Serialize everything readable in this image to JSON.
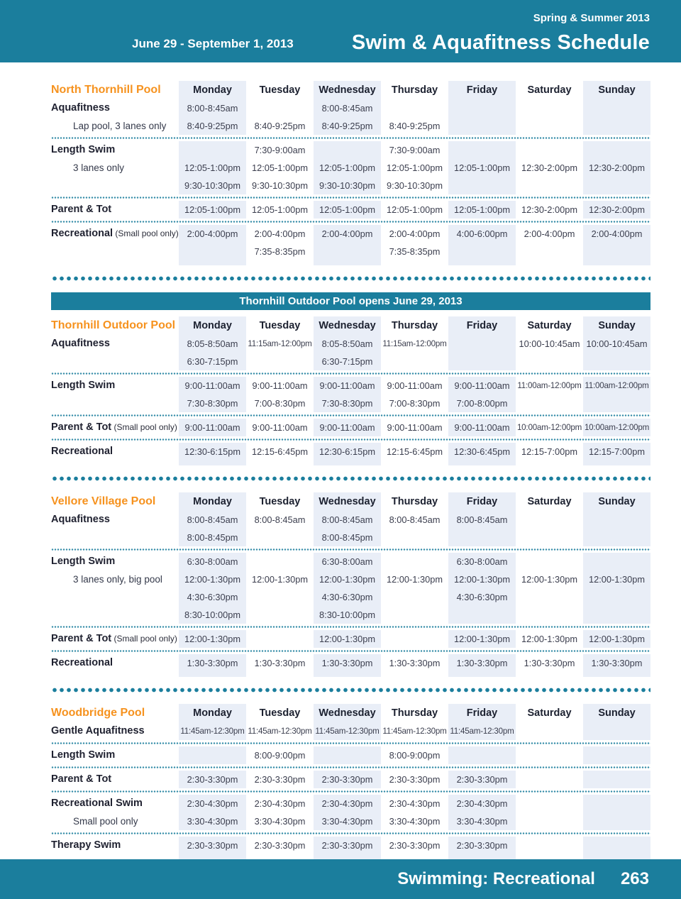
{
  "header": {
    "season": "Spring & Summer 2013",
    "date_range": "June 29 - September 1, 2013",
    "title": "Swim & Aquafitness Schedule"
  },
  "days": [
    "Monday",
    "Tuesday",
    "Wednesday",
    "Thursday",
    "Friday",
    "Saturday",
    "Sunday"
  ],
  "colors": {
    "teal": "#1b7e9d",
    "orange": "#f6921e",
    "shaded_column": "#e9eef7"
  },
  "pools": [
    {
      "name": "North Thornhill Pool",
      "banner": "",
      "groups": [
        {
          "rows": [
            {
              "label": "Aquafitness",
              "note": "",
              "sub": false,
              "times": [
                "8:00-8:45am",
                "",
                "8:00-8:45am",
                "",
                "",
                "",
                ""
              ]
            },
            {
              "label": "Lap pool, 3 lanes only",
              "note": "",
              "sub": true,
              "times": [
                "8:40-9:25pm",
                "8:40-9:25pm",
                "8:40-9:25pm",
                "8:40-9:25pm",
                "",
                "",
                ""
              ]
            }
          ]
        },
        {
          "rows": [
            {
              "label": "Length Swim",
              "note": "",
              "sub": false,
              "times": [
                "",
                "7:30-9:00am",
                "",
                "7:30-9:00am",
                "",
                "",
                ""
              ]
            },
            {
              "label": "3 lanes only",
              "note": "",
              "sub": true,
              "times": [
                "12:05-1:00pm",
                "12:05-1:00pm",
                "12:05-1:00pm",
                "12:05-1:00pm",
                "12:05-1:00pm",
                "12:30-2:00pm",
                "12:30-2:00pm"
              ]
            },
            {
              "label": "",
              "note": "",
              "sub": true,
              "times": [
                "9:30-10:30pm",
                "9:30-10:30pm",
                "9:30-10:30pm",
                "9:30-10:30pm",
                "",
                "",
                ""
              ]
            }
          ]
        },
        {
          "rows": [
            {
              "label": "Parent & Tot",
              "note": "",
              "sub": false,
              "times": [
                "12:05-1:00pm",
                "12:05-1:00pm",
                "12:05-1:00pm",
                "12:05-1:00pm",
                "12:05-1:00pm",
                "12:30-2:00pm",
                "12:30-2:00pm"
              ]
            }
          ]
        },
        {
          "rows": [
            {
              "label": "Recreational",
              "note": "(Small pool only)",
              "sub": false,
              "times": [
                "2:00-4:00pm",
                "2:00-4:00pm",
                "2:00-4:00pm",
                "2:00-4:00pm",
                "4:00-6:00pm",
                "2:00-4:00pm",
                "2:00-4:00pm"
              ]
            },
            {
              "label": "",
              "note": "",
              "sub": true,
              "times": [
                "",
                "7:35-8:35pm",
                "",
                "7:35-8:35pm",
                "",
                "",
                ""
              ]
            }
          ]
        }
      ]
    },
    {
      "name": "Thornhill Outdoor Pool",
      "banner": "Thornhill Outdoor Pool opens June 29, 2013",
      "groups": [
        {
          "rows": [
            {
              "label": "Aquafitness",
              "note": "",
              "sub": false,
              "times": [
                "8:05-8:50am",
                "11:15am-12:00pm",
                "8:05-8:50am",
                "11:15am-12:00pm",
                "",
                "10:00-10:45am",
                "10:00-10:45am"
              ]
            },
            {
              "label": "",
              "note": "",
              "sub": true,
              "times": [
                "6:30-7:15pm",
                "",
                "6:30-7:15pm",
                "",
                "",
                "",
                ""
              ]
            }
          ]
        },
        {
          "rows": [
            {
              "label": "Length Swim",
              "note": "",
              "sub": false,
              "times": [
                "9:00-11:00am",
                "9:00-11:00am",
                "9:00-11:00am",
                "9:00-11:00am",
                "9:00-11:00am",
                "11:00am-12:00pm",
                "11:00am-12:00pm"
              ]
            },
            {
              "label": "",
              "note": "",
              "sub": true,
              "times": [
                "7:30-8:30pm",
                "7:00-8:30pm",
                "7:30-8:30pm",
                "7:00-8:30pm",
                "7:00-8:00pm",
                "",
                ""
              ]
            }
          ]
        },
        {
          "rows": [
            {
              "label": "Parent & Tot",
              "note": "(Small pool only)",
              "sub": false,
              "times": [
                "9:00-11:00am",
                "9:00-11:00am",
                "9:00-11:00am",
                "9:00-11:00am",
                "9:00-11:00am",
                "10:00am-12:00pm",
                "10:00am-12:00pm"
              ]
            }
          ]
        },
        {
          "rows": [
            {
              "label": "Recreational",
              "note": "",
              "sub": false,
              "times": [
                "12:30-6:15pm",
                "12:15-6:45pm",
                "12:30-6:15pm",
                "12:15-6:45pm",
                "12:30-6:45pm",
                "12:15-7:00pm",
                "12:15-7:00pm"
              ]
            }
          ]
        }
      ]
    },
    {
      "name": "Vellore Village Pool",
      "banner": "",
      "groups": [
        {
          "rows": [
            {
              "label": "Aquafitness",
              "note": "",
              "sub": false,
              "times": [
                "8:00-8:45am",
                "8:00-8:45am",
                "8:00-8:45am",
                "8:00-8:45am",
                "8:00-8:45am",
                "",
                ""
              ]
            },
            {
              "label": "",
              "note": "",
              "sub": true,
              "times": [
                "8:00-8:45pm",
                "",
                "8:00-8:45pm",
                "",
                "",
                "",
                ""
              ]
            }
          ]
        },
        {
          "rows": [
            {
              "label": "Length Swim",
              "note": "",
              "sub": false,
              "times": [
                "6:30-8:00am",
                "",
                "6:30-8:00am",
                "",
                "6:30-8:00am",
                "",
                ""
              ]
            },
            {
              "label": "3 lanes only, big pool",
              "note": "",
              "sub": true,
              "times": [
                "12:00-1:30pm",
                "12:00-1:30pm",
                "12:00-1:30pm",
                "12:00-1:30pm",
                "12:00-1:30pm",
                "12:00-1:30pm",
                "12:00-1:30pm"
              ]
            },
            {
              "label": "",
              "note": "",
              "sub": true,
              "times": [
                "4:30-6:30pm",
                "",
                "4:30-6:30pm",
                "",
                "4:30-6:30pm",
                "",
                ""
              ]
            },
            {
              "label": "",
              "note": "",
              "sub": true,
              "times": [
                "8:30-10:00pm",
                "",
                "8:30-10:00pm",
                "",
                "",
                "",
                ""
              ]
            }
          ]
        },
        {
          "rows": [
            {
              "label": "Parent & Tot",
              "note": "(Small pool only)",
              "sub": false,
              "times": [
                "12:00-1:30pm",
                "",
                "12:00-1:30pm",
                "",
                "12:00-1:30pm",
                "12:00-1:30pm",
                "12:00-1:30pm"
              ]
            }
          ]
        },
        {
          "rows": [
            {
              "label": "Recreational",
              "note": "",
              "sub": false,
              "times": [
                "1:30-3:30pm",
                "1:30-3:30pm",
                "1:30-3:30pm",
                "1:30-3:30pm",
                "1:30-3:30pm",
                "1:30-3:30pm",
                "1:30-3:30pm"
              ]
            }
          ]
        }
      ]
    },
    {
      "name": "Woodbridge Pool",
      "banner": "",
      "groups": [
        {
          "rows": [
            {
              "label": "Gentle Aquafitness",
              "note": "",
              "sub": false,
              "times": [
                "11:45am-12:30pm",
                "11:45am-12:30pm",
                "11:45am-12:30pm",
                "11:45am-12:30pm",
                "11:45am-12:30pm",
                "",
                ""
              ]
            }
          ]
        },
        {
          "rows": [
            {
              "label": "Length Swim",
              "note": "",
              "sub": false,
              "times": [
                "",
                "8:00-9:00pm",
                "",
                "8:00-9:00pm",
                "",
                "",
                ""
              ]
            }
          ]
        },
        {
          "rows": [
            {
              "label": "Parent & Tot",
              "note": "",
              "sub": false,
              "times": [
                "2:30-3:30pm",
                "2:30-3:30pm",
                "2:30-3:30pm",
                "2:30-3:30pm",
                "2:30-3:30pm",
                "",
                ""
              ]
            }
          ]
        },
        {
          "rows": [
            {
              "label": "Recreational Swim",
              "note": "",
              "sub": false,
              "times": [
                "2:30-4:30pm",
                "2:30-4:30pm",
                "2:30-4:30pm",
                "2:30-4:30pm",
                "2:30-4:30pm",
                "",
                ""
              ]
            },
            {
              "label": "Small pool only",
              "note": "",
              "sub": true,
              "times": [
                "3:30-4:30pm",
                "3:30-4:30pm",
                "3:30-4:30pm",
                "3:30-4:30pm",
                "3:30-4:30pm",
                "",
                ""
              ]
            }
          ]
        },
        {
          "rows": [
            {
              "label": "Therapy Swim",
              "note": "",
              "sub": false,
              "times": [
                "2:30-3:30pm",
                "2:30-3:30pm",
                "2:30-3:30pm",
                "2:30-3:30pm",
                "2:30-3:30pm",
                "",
                ""
              ]
            }
          ]
        }
      ]
    }
  ],
  "footer": {
    "label": "Swimming: Recreational",
    "page": "263"
  }
}
